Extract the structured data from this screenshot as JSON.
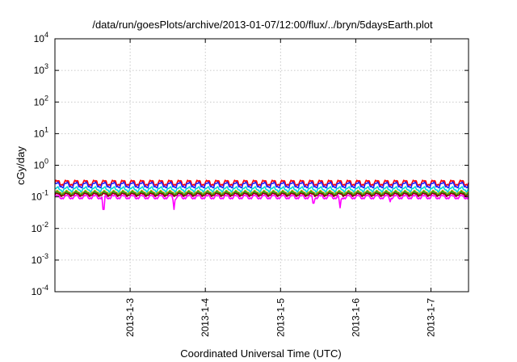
{
  "chart_data": {
    "type": "line",
    "title": "/data/run/goesPlots/archive/2013-01-07/12:00/flux/../bryn/5daysEarth.plot",
    "xlabel": "Coordinated Universal Time (UTC)",
    "ylabel": "cGy/day",
    "yscale": "log",
    "ylim": [
      0.0001,
      10000
    ],
    "xlim": [
      "2013-01-02 00:00",
      "2013-01-07 12:00"
    ],
    "grid": true,
    "x_ticks": [
      "2013-1-3",
      "2013-1-4",
      "2013-1-5",
      "2013-1-6",
      "2013-1-7"
    ],
    "y_ticks": [
      {
        "base": "10",
        "exp": "-4"
      },
      {
        "base": "10",
        "exp": "-3"
      },
      {
        "base": "10",
        "exp": "-2"
      },
      {
        "base": "10",
        "exp": "-1"
      },
      {
        "base": "10",
        "exp": "0"
      },
      {
        "base": "10",
        "exp": "1"
      },
      {
        "base": "10",
        "exp": "2"
      },
      {
        "base": "10",
        "exp": "3"
      },
      {
        "base": "10",
        "exp": "4"
      }
    ],
    "series": [
      {
        "color": "#ff0000",
        "baseline": 0.28,
        "amplitude": 0.07,
        "period_hours": 3,
        "dips": []
      },
      {
        "color": "#2222ff",
        "baseline": 0.24,
        "amplitude": 0.06,
        "period_hours": 3,
        "dips": []
      },
      {
        "color": "#00d8d8",
        "baseline": 0.175,
        "amplitude": 0.035,
        "period_hours": 3,
        "dips": []
      },
      {
        "color": "#c8a000",
        "baseline": 0.14,
        "amplitude": 0.02,
        "period_hours": 3,
        "dips": []
      },
      {
        "color": "#22aa22",
        "baseline": 0.13,
        "amplitude": 0.02,
        "period_hours": 3,
        "dips": []
      },
      {
        "color": "#8b0000",
        "baseline": 0.118,
        "amplitude": 0.015,
        "period_hours": 3,
        "dips": []
      },
      {
        "color": "#ff00ff",
        "baseline": 0.1,
        "amplitude": 0.018,
        "period_hours": 3,
        "dips": [
          {
            "time": "2013-01-02 15:30",
            "value": 0.01
          },
          {
            "time": "2013-01-03 14:00",
            "value": 0.04
          },
          {
            "time": "2013-01-05 10:30",
            "value": 0.045
          },
          {
            "time": "2013-01-05 19:00",
            "value": 0.045
          },
          {
            "time": "2013-01-06 11:00",
            "value": 0.07
          }
        ]
      }
    ]
  }
}
